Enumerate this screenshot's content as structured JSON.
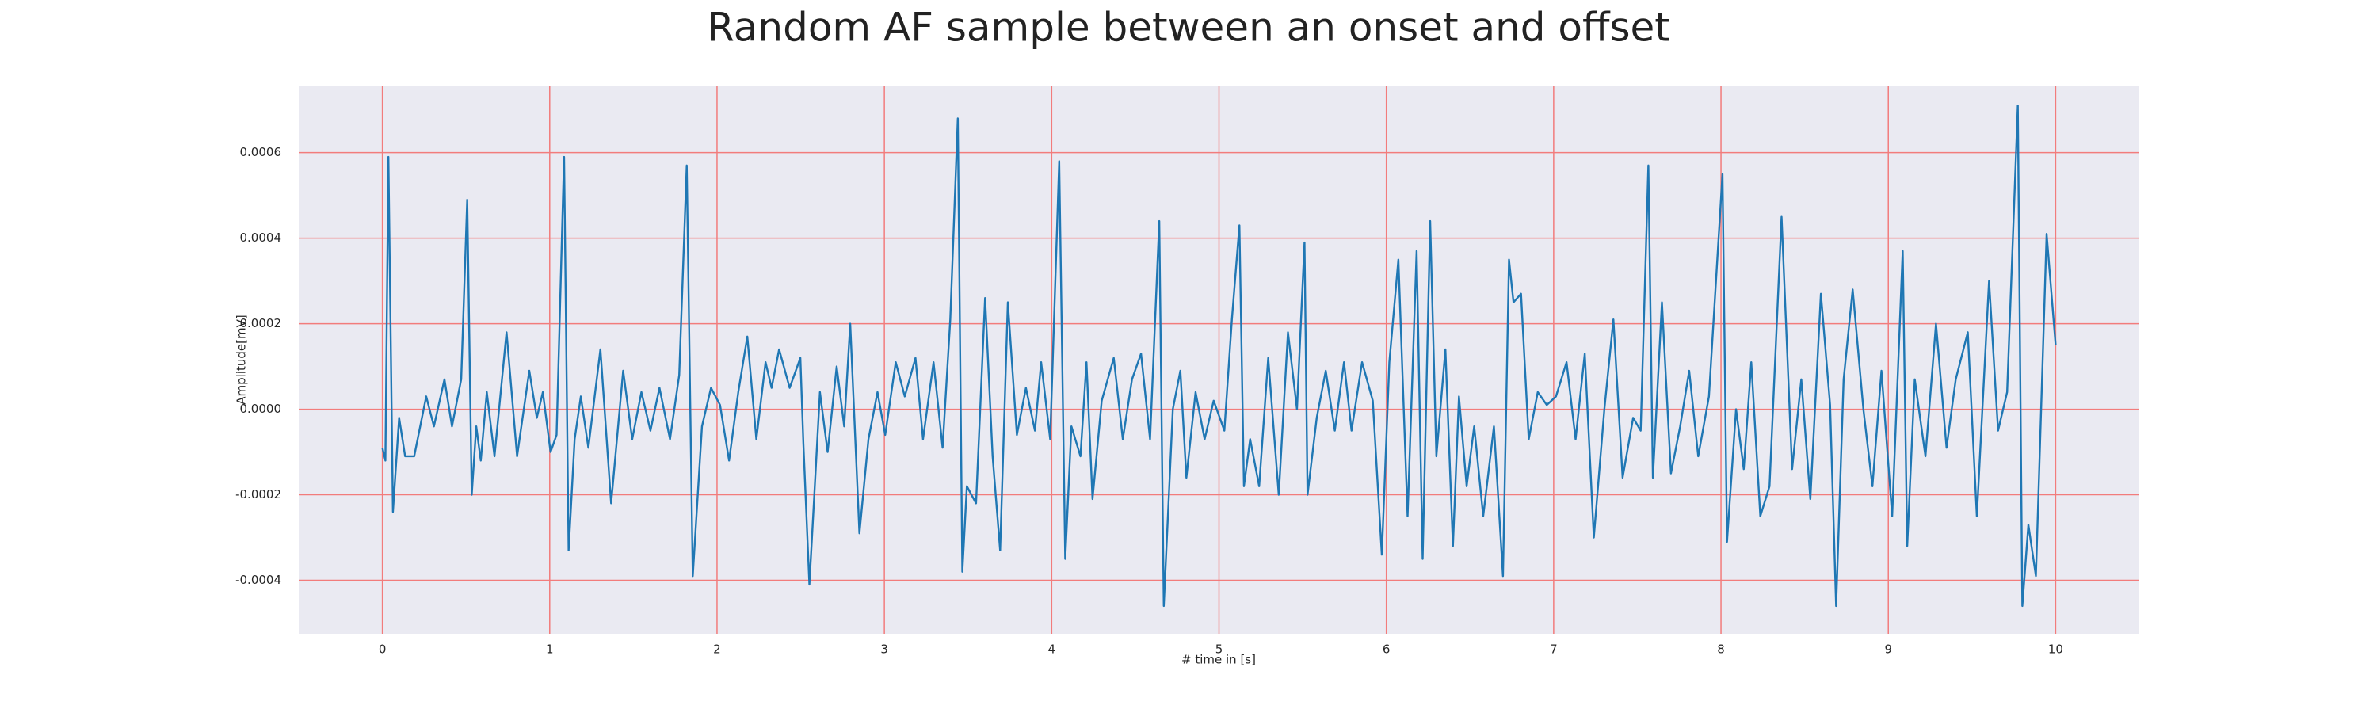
{
  "chart_data": {
    "type": "line",
    "title": "Random AF sample between an onset and offset",
    "xlabel": "# time in [s]",
    "ylabel": "Amplitude[mV]",
    "color": "#1f77b4",
    "grid": true,
    "grid_color": "#f27c7c",
    "xlim": [
      -0.5,
      10.5
    ],
    "ylim": [
      -0.000525,
      0.000755
    ],
    "xticks": [
      0,
      1,
      2,
      3,
      4,
      5,
      6,
      7,
      8,
      9,
      10
    ],
    "yticks": [
      -0.0004,
      -0.0002,
      {
        "value": 0,
        "label": "0.0000"
      },
      0.0002,
      0.0004,
      0.0006
    ],
    "x": [
      0,
      0.018,
      0.036,
      0.063,
      0.1,
      0.136,
      0.19,
      0.262,
      0.308,
      0.371,
      0.416,
      0.471,
      0.507,
      0.534,
      0.561,
      0.588,
      0.624,
      0.67,
      0.742,
      0.805,
      0.878,
      0.923,
      0.959,
      1.005,
      1.041,
      1.086,
      1.113,
      1.149,
      1.186,
      1.231,
      1.303,
      1.367,
      1.439,
      1.493,
      1.548,
      1.602,
      1.656,
      1.719,
      1.774,
      1.819,
      1.855,
      1.91,
      1.964,
      2.018,
      2.072,
      2.127,
      2.181,
      2.235,
      2.29,
      2.326,
      2.371,
      2.434,
      2.498,
      2.516,
      2.552,
      2.615,
      2.661,
      2.715,
      2.76,
      2.796,
      2.851,
      2.905,
      2.959,
      3.005,
      3.068,
      3.122,
      3.186,
      3.231,
      3.294,
      3.348,
      3.394,
      3.439,
      3.466,
      3.493,
      3.548,
      3.602,
      3.647,
      3.692,
      3.738,
      3.792,
      3.846,
      3.9,
      3.937,
      3.991,
      4.045,
      4.081,
      4.118,
      4.172,
      4.208,
      4.244,
      4.299,
      4.371,
      4.425,
      4.48,
      4.534,
      4.588,
      4.643,
      4.67,
      4.724,
      4.769,
      4.805,
      4.86,
      4.914,
      4.968,
      5.032,
      5.077,
      5.122,
      5.149,
      5.186,
      5.24,
      5.294,
      5.357,
      5.412,
      5.466,
      5.511,
      5.529,
      5.584,
      5.638,
      5.692,
      5.747,
      5.792,
      5.855,
      5.919,
      5.973,
      6.018,
      6.072,
      6.127,
      6.181,
      6.217,
      6.262,
      6.299,
      6.353,
      6.398,
      6.434,
      6.48,
      6.525,
      6.579,
      6.643,
      6.697,
      6.733,
      6.76,
      6.805,
      6.851,
      6.905,
      6.959,
      7.014,
      7.077,
      7.131,
      7.186,
      7.24,
      7.303,
      7.357,
      7.412,
      7.475,
      7.52,
      7.566,
      7.593,
      7.647,
      7.701,
      7.756,
      7.81,
      7.864,
      7.928,
      8.009,
      8.036,
      8.09,
      8.136,
      8.181,
      8.235,
      8.29,
      8.362,
      8.425,
      8.48,
      8.534,
      8.597,
      8.652,
      8.688,
      8.733,
      8.787,
      8.851,
      8.905,
      8.959,
      9.023,
      9.086,
      9.113,
      9.158,
      9.222,
      9.285,
      9.348,
      9.403,
      9.475,
      9.529,
      9.602,
      9.656,
      9.71,
      9.774,
      9.801,
      9.837,
      9.882,
      9.946,
      10
    ],
    "values": [
      -9e-05,
      -0.00012,
      0.00059,
      -0.00024,
      -2e-05,
      -0.00011,
      -0.00011,
      3e-05,
      -4e-05,
      7e-05,
      -4e-05,
      7e-05,
      0.00049,
      -0.0002,
      -4e-05,
      -0.00012,
      4e-05,
      -0.00011,
      0.00018,
      -0.00011,
      9e-05,
      -2e-05,
      4e-05,
      -0.0001,
      -6e-05,
      0.00059,
      -0.00033,
      -7e-05,
      3e-05,
      -9e-05,
      0.00014,
      -0.00022,
      9e-05,
      -7e-05,
      4e-05,
      -5e-05,
      5e-05,
      -7e-05,
      8e-05,
      0.00057,
      -0.00039,
      -4e-05,
      5e-05,
      1e-05,
      -0.00012,
      4e-05,
      0.00017,
      -7e-05,
      0.00011,
      5e-05,
      0.00014,
      5e-05,
      0.00012,
      -8e-05,
      -0.00041,
      4e-05,
      -0.0001,
      0.0001,
      -4e-05,
      0.0002,
      -0.00029,
      -7e-05,
      4e-05,
      -6e-05,
      0.00011,
      3e-05,
      0.00012,
      -7e-05,
      0.00011,
      -9e-05,
      0.00021,
      0.00068,
      -0.00038,
      -0.00018,
      -0.00022,
      0.00026,
      -0.00011,
      -0.00033,
      0.00025,
      -6e-05,
      5e-05,
      -5e-05,
      0.00011,
      -7e-05,
      0.00058,
      -0.00035,
      -4e-05,
      -0.00011,
      0.00011,
      -0.00021,
      2e-05,
      0.00012,
      -7e-05,
      7e-05,
      0.00013,
      -7e-05,
      0.00044,
      -0.00046,
      0,
      9e-05,
      -0.00016,
      4e-05,
      -7e-05,
      2e-05,
      -5e-05,
      0.00021,
      0.00043,
      -0.00018,
      -7e-05,
      -0.00018,
      0.00012,
      -0.0002,
      0.00018,
      0,
      0.00039,
      -0.0002,
      -2e-05,
      9e-05,
      -5e-05,
      0.00011,
      -5e-05,
      0.00011,
      2e-05,
      -0.00034,
      0.00011,
      0.00035,
      -0.00025,
      0.00037,
      -0.00035,
      0.00044,
      -0.00011,
      0.00014,
      -0.00032,
      3e-05,
      -0.00018,
      -4e-05,
      -0.00025,
      -4e-05,
      -0.00039,
      0.00035,
      0.00025,
      0.00027,
      -7e-05,
      4e-05,
      1e-05,
      3e-05,
      0.00011,
      -7e-05,
      0.00013,
      -0.0003,
      0,
      0.00021,
      -0.00016,
      -2e-05,
      -5e-05,
      0.00057,
      -0.00016,
      0.00025,
      -0.00015,
      -4e-05,
      9e-05,
      -0.00011,
      3e-05,
      0.00055,
      -0.00031,
      0,
      -0.00014,
      0.00011,
      -0.00025,
      -0.00018,
      0.00045,
      -0.00014,
      7e-05,
      -0.00021,
      0.00027,
      1e-05,
      -0.00046,
      7e-05,
      0.00028,
      0,
      -0.00018,
      9e-05,
      -0.00025,
      0.00037,
      -0.00032,
      7e-05,
      -0.00011,
      0.0002,
      -9e-05,
      7e-05,
      0.00018,
      -0.00025,
      0.0003,
      -5e-05,
      4e-05,
      0.00071,
      -0.00046,
      -0.00027,
      -0.00039,
      0.00041,
      0.00015
    ]
  }
}
